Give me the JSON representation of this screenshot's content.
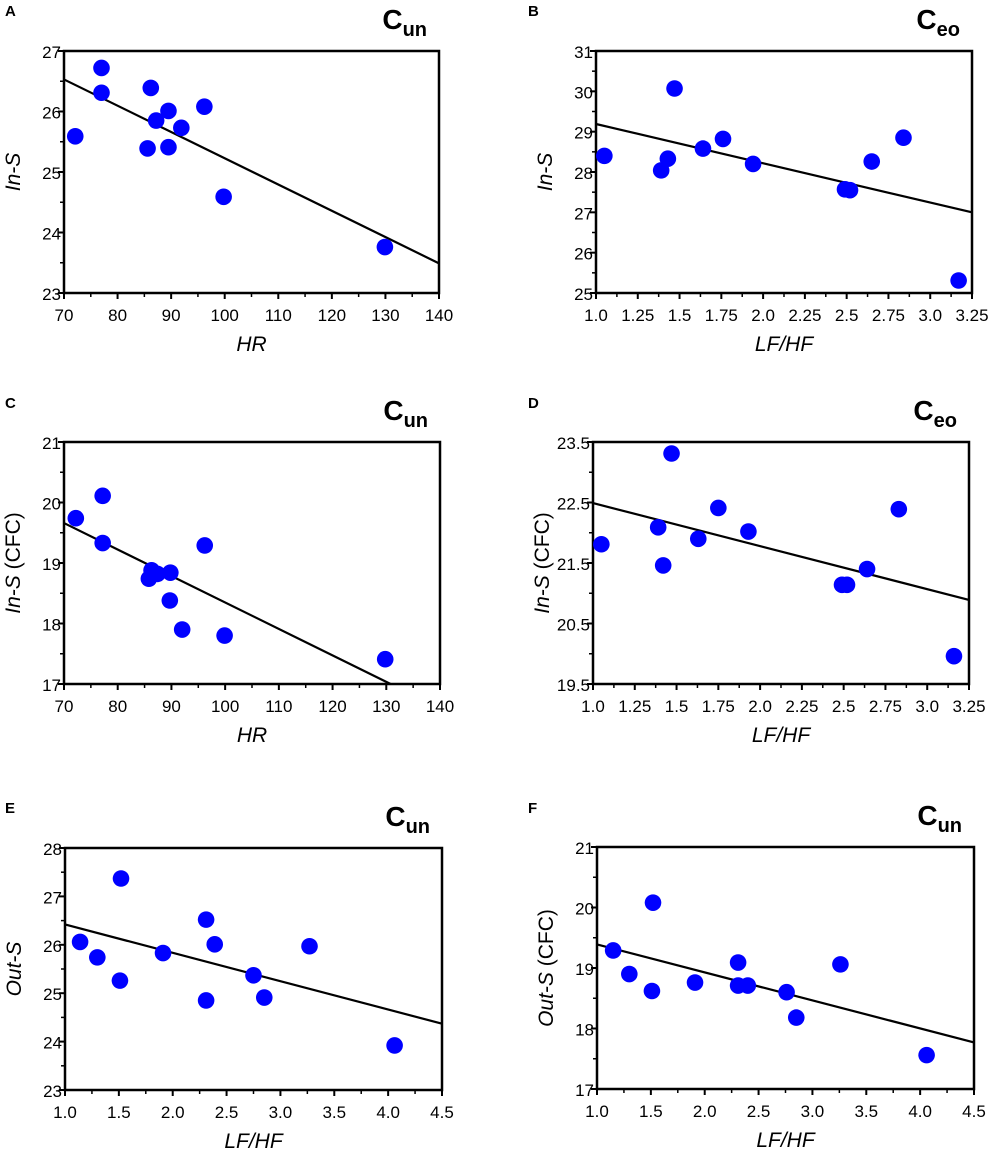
{
  "colors": {
    "marker": "#0000ff",
    "line": "#000000",
    "axis": "#000000"
  },
  "chart_data": [
    {
      "panel": "A",
      "type": "scatter",
      "title_main": "C",
      "title_sub": "un",
      "xlabel": "HR",
      "ylabel_italic": "In-S",
      "ylabel_suffix": "",
      "xlim": [
        70,
        140
      ],
      "ylim": [
        23,
        27
      ],
      "xticks": [
        {
          "v": 70,
          "t": "70"
        },
        {
          "v": 80,
          "t": "80"
        },
        {
          "v": 90,
          "t": "90"
        },
        {
          "v": 100,
          "t": "100"
        },
        {
          "v": 110,
          "t": "110"
        },
        {
          "v": 120,
          "t": "120"
        },
        {
          "v": 130,
          "t": "130"
        },
        {
          "v": 140,
          "t": "140"
        }
      ],
      "yticks": [
        {
          "v": 23,
          "t": "23"
        },
        {
          "v": 24,
          "t": "24"
        },
        {
          "v": 25,
          "t": "25"
        },
        {
          "v": 26,
          "t": "26"
        },
        {
          "v": 27,
          "t": "27"
        }
      ],
      "x_minor": 5,
      "y_minor": 0.5,
      "points": [
        [
          72.1,
          25.59
        ],
        [
          77.0,
          26.72
        ],
        [
          77.0,
          26.31
        ],
        [
          86.2,
          26.39
        ],
        [
          87.2,
          25.85
        ],
        [
          89.5,
          26.01
        ],
        [
          91.9,
          25.73
        ],
        [
          96.2,
          26.08
        ],
        [
          85.6,
          25.39
        ],
        [
          89.5,
          25.41
        ],
        [
          99.8,
          24.59
        ],
        [
          129.9,
          23.76
        ]
      ],
      "fit": [
        [
          70,
          26.53
        ],
        [
          140,
          23.49
        ]
      ]
    },
    {
      "panel": "B",
      "type": "scatter",
      "title_main": "C",
      "title_sub": "eo",
      "xlabel": "LF/HF",
      "ylabel_italic": "In-S",
      "ylabel_suffix": "",
      "xlim": [
        1.0,
        3.25
      ],
      "ylim": [
        25,
        31
      ],
      "xticks": [
        {
          "v": 1.0,
          "t": "1.0"
        },
        {
          "v": 1.25,
          "t": "1.25"
        },
        {
          "v": 1.5,
          "t": "1.5"
        },
        {
          "v": 1.75,
          "t": "1.75"
        },
        {
          "v": 2.0,
          "t": "2.0"
        },
        {
          "v": 2.25,
          "t": "2.25"
        },
        {
          "v": 2.5,
          "t": "2.5"
        },
        {
          "v": 2.75,
          "t": "2.75"
        },
        {
          "v": 3.0,
          "t": "3.0"
        },
        {
          "v": 3.25,
          "t": "3.25"
        }
      ],
      "yticks": [
        {
          "v": 25,
          "t": "25"
        },
        {
          "v": 26,
          "t": "26"
        },
        {
          "v": 27,
          "t": "27"
        },
        {
          "v": 28,
          "t": "28"
        },
        {
          "v": 29,
          "t": "29"
        },
        {
          "v": 30,
          "t": "30"
        },
        {
          "v": 31,
          "t": "31"
        }
      ],
      "x_minor": null,
      "y_minor": 0.5,
      "points": [
        [
          1.05,
          28.4
        ],
        [
          1.39,
          28.04
        ],
        [
          1.43,
          28.33
        ],
        [
          1.47,
          30.07
        ],
        [
          1.64,
          28.58
        ],
        [
          1.76,
          28.82
        ],
        [
          1.94,
          28.2
        ],
        [
          2.49,
          27.57
        ],
        [
          2.52,
          27.55
        ],
        [
          2.65,
          28.26
        ],
        [
          2.84,
          28.85
        ],
        [
          3.17,
          25.31
        ]
      ],
      "fit": [
        [
          1.0,
          29.19
        ],
        [
          3.25,
          27.0
        ]
      ]
    },
    {
      "panel": "C",
      "type": "scatter",
      "title_main": "C",
      "title_sub": "un",
      "xlabel": "HR",
      "ylabel_italic": "In-S",
      "ylabel_suffix": " (CFC)",
      "xlim": [
        70,
        140
      ],
      "ylim": [
        17,
        21
      ],
      "xticks": [
        {
          "v": 70,
          "t": "70"
        },
        {
          "v": 80,
          "t": "80"
        },
        {
          "v": 90,
          "t": "90"
        },
        {
          "v": 100,
          "t": "100"
        },
        {
          "v": 110,
          "t": "110"
        },
        {
          "v": 120,
          "t": "120"
        },
        {
          "v": 130,
          "t": "130"
        },
        {
          "v": 140,
          "t": "140"
        }
      ],
      "yticks": [
        {
          "v": 17,
          "t": "17"
        },
        {
          "v": 18,
          "t": "18"
        },
        {
          "v": 19,
          "t": "19"
        },
        {
          "v": 20,
          "t": "20"
        },
        {
          "v": 21,
          "t": "21"
        }
      ],
      "x_minor": 5,
      "y_minor": 0.5,
      "points": [
        [
          72.2,
          19.74
        ],
        [
          77.2,
          20.11
        ],
        [
          77.2,
          19.33
        ],
        [
          96.2,
          19.29
        ],
        [
          86.3,
          18.88
        ],
        [
          85.8,
          18.74
        ],
        [
          87.4,
          18.82
        ],
        [
          89.8,
          18.84
        ],
        [
          89.7,
          18.38
        ],
        [
          92.0,
          17.9
        ],
        [
          99.9,
          17.8
        ],
        [
          129.8,
          17.41
        ]
      ],
      "fit": [
        [
          70,
          19.66
        ],
        [
          130.8,
          17.0
        ]
      ]
    },
    {
      "panel": "D",
      "type": "scatter",
      "title_main": "C",
      "title_sub": "eo",
      "xlabel": "LF/HF",
      "ylabel_italic": "In-S",
      "ylabel_suffix": " (CFC)",
      "xlim": [
        1.0,
        3.25
      ],
      "ylim": [
        19.5,
        23.5
      ],
      "xticks": [
        {
          "v": 1.0,
          "t": "1.0"
        },
        {
          "v": 1.25,
          "t": "1.25"
        },
        {
          "v": 1.5,
          "t": "1.5"
        },
        {
          "v": 1.75,
          "t": "1.75"
        },
        {
          "v": 2.0,
          "t": "2.0"
        },
        {
          "v": 2.25,
          "t": "2.25"
        },
        {
          "v": 2.5,
          "t": "2.5"
        },
        {
          "v": 2.75,
          "t": "2.75"
        },
        {
          "v": 3.0,
          "t": "3.0"
        },
        {
          "v": 3.25,
          "t": "3.25"
        }
      ],
      "yticks": [
        {
          "v": 19.5,
          "t": "19.5"
        },
        {
          "v": 20.5,
          "t": "20.5"
        },
        {
          "v": 21.5,
          "t": "21.5"
        },
        {
          "v": 22.5,
          "t": "22.5"
        },
        {
          "v": 23.5,
          "t": "23.5"
        }
      ],
      "x_minor": null,
      "y_minor": 0.5,
      "points": [
        [
          1.05,
          21.81
        ],
        [
          1.39,
          22.09
        ],
        [
          1.42,
          21.46
        ],
        [
          1.47,
          23.31
        ],
        [
          1.63,
          21.9
        ],
        [
          1.75,
          22.41
        ],
        [
          1.93,
          22.02
        ],
        [
          2.49,
          21.14
        ],
        [
          2.52,
          21.14
        ],
        [
          2.64,
          21.4
        ],
        [
          2.83,
          22.39
        ],
        [
          3.16,
          19.96
        ]
      ],
      "fit": [
        [
          1.0,
          22.49
        ],
        [
          3.25,
          20.89
        ]
      ]
    },
    {
      "panel": "E",
      "type": "scatter",
      "title_main": "C",
      "title_sub": "un",
      "xlabel": "LF/HF",
      "ylabel_italic": "Out-S",
      "ylabel_suffix": "",
      "xlim": [
        1.0,
        4.5
      ],
      "ylim": [
        23,
        28
      ],
      "xticks": [
        {
          "v": 1.0,
          "t": "1.0"
        },
        {
          "v": 1.5,
          "t": "1.5"
        },
        {
          "v": 2.0,
          "t": "2.0"
        },
        {
          "v": 2.5,
          "t": "2.5"
        },
        {
          "v": 3.0,
          "t": "3.0"
        },
        {
          "v": 3.5,
          "t": "3.5"
        },
        {
          "v": 4.0,
          "t": "4.0"
        },
        {
          "v": 4.5,
          "t": "4.5"
        }
      ],
      "yticks": [
        {
          "v": 23,
          "t": "23"
        },
        {
          "v": 24,
          "t": "24"
        },
        {
          "v": 25,
          "t": "25"
        },
        {
          "v": 26,
          "t": "26"
        },
        {
          "v": 27,
          "t": "27"
        },
        {
          "v": 28,
          "t": "28"
        }
      ],
      "x_minor": 0.25,
      "y_minor": 0.5,
      "points": [
        [
          1.14,
          26.06
        ],
        [
          1.3,
          25.74
        ],
        [
          1.52,
          27.37
        ],
        [
          1.51,
          25.26
        ],
        [
          1.91,
          25.83
        ],
        [
          2.31,
          26.52
        ],
        [
          2.39,
          26.01
        ],
        [
          2.31,
          24.85
        ],
        [
          2.75,
          25.37
        ],
        [
          2.85,
          24.91
        ],
        [
          3.27,
          25.97
        ],
        [
          4.06,
          23.92
        ]
      ],
      "fit": [
        [
          1.0,
          26.42
        ],
        [
          4.5,
          24.37
        ]
      ]
    },
    {
      "panel": "F",
      "type": "scatter",
      "title_main": "C",
      "title_sub": "un",
      "xlabel": "LF/HF",
      "ylabel_italic": "Out-S",
      "ylabel_suffix": " (CFC)",
      "xlim": [
        1.0,
        4.5
      ],
      "ylim": [
        17,
        21
      ],
      "xticks": [
        {
          "v": 1.0,
          "t": "1.0"
        },
        {
          "v": 1.5,
          "t": "1.5"
        },
        {
          "v": 2.0,
          "t": "2.0"
        },
        {
          "v": 2.5,
          "t": "2.5"
        },
        {
          "v": 3.0,
          "t": "3.0"
        },
        {
          "v": 3.5,
          "t": "3.5"
        },
        {
          "v": 4.0,
          "t": "4.0"
        },
        {
          "v": 4.5,
          "t": "4.5"
        }
      ],
      "yticks": [
        {
          "v": 17,
          "t": "17"
        },
        {
          "v": 18,
          "t": "18"
        },
        {
          "v": 19,
          "t": "19"
        },
        {
          "v": 20,
          "t": "20"
        },
        {
          "v": 21,
          "t": "21"
        }
      ],
      "x_minor": 0.25,
      "y_minor": 0.5,
      "points": [
        [
          1.15,
          19.29
        ],
        [
          1.3,
          18.9
        ],
        [
          1.52,
          20.08
        ],
        [
          1.51,
          18.62
        ],
        [
          1.91,
          18.76
        ],
        [
          2.31,
          19.09
        ],
        [
          2.31,
          18.71
        ],
        [
          2.4,
          18.71
        ],
        [
          2.76,
          18.6
        ],
        [
          2.85,
          18.18
        ],
        [
          3.26,
          19.06
        ],
        [
          4.06,
          17.56
        ]
      ],
      "fit": [
        [
          1.0,
          19.39
        ],
        [
          4.5,
          17.77
        ]
      ]
    }
  ]
}
